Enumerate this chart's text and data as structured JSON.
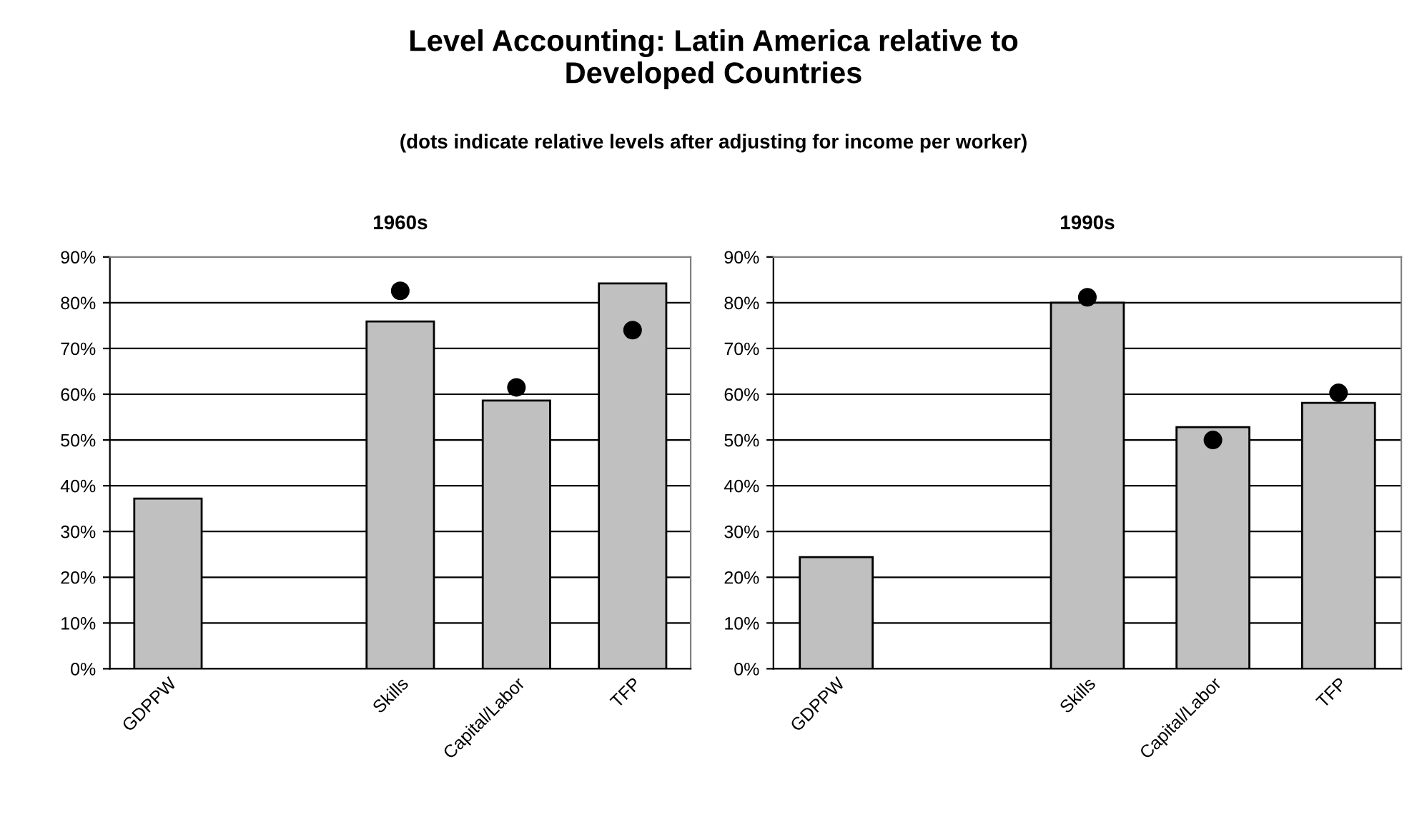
{
  "chart_data": [
    {
      "type": "bar",
      "title": "1960s",
      "annotations": [
        "Level Accounting: Latin America relative to\nDeveloped Countries",
        "(dots indicate relative levels after adjusting for income per worker)"
      ],
      "categories": [
        "GDPPW",
        null,
        "Skills",
        "Capital/Labor",
        "TFP"
      ],
      "series": [
        {
          "color": "#c0c0c0",
          "values": [
            37.2,
            null,
            75.9,
            58.6,
            84.2
          ]
        },
        {
          "type": "scatter",
          "color": "#000000",
          "marker": "circle",
          "values": [
            null,
            null,
            82.6,
            61.5,
            74.0
          ]
        }
      ],
      "ylim": [
        0,
        90
      ],
      "yticks": [
        {
          "value": 0,
          "label": "0%"
        },
        {
          "value": 10,
          "label": "10%"
        },
        {
          "value": 20,
          "label": "20%"
        },
        {
          "value": 30,
          "label": "30%"
        },
        {
          "value": 40,
          "label": "40%"
        },
        {
          "value": 50,
          "label": "50%"
        },
        {
          "value": 60,
          "label": "60%"
        },
        {
          "value": 70,
          "label": "70%"
        },
        {
          "value": 80,
          "label": "80%"
        },
        {
          "value": 90,
          "label": "90%"
        }
      ],
      "grid": "y"
    },
    {
      "type": "bar",
      "title": "1990s",
      "categories": [
        "GDPPW",
        null,
        "Skills",
        "Capital/Labor",
        "TFP"
      ],
      "series": [
        {
          "color": "#c0c0c0",
          "values": [
            24.4,
            null,
            80.0,
            52.8,
            58.1
          ]
        },
        {
          "type": "scatter",
          "color": "#000000",
          "marker": "circle",
          "values": [
            null,
            null,
            81.2,
            50.0,
            60.3
          ]
        }
      ],
      "ylim": [
        0,
        90
      ],
      "yticks": [
        {
          "value": 0,
          "label": "0%"
        },
        {
          "value": 10,
          "label": "10%"
        },
        {
          "value": 20,
          "label": "20%"
        },
        {
          "value": 30,
          "label": "30%"
        },
        {
          "value": 40,
          "label": "40%"
        },
        {
          "value": 50,
          "label": "50%"
        },
        {
          "value": 60,
          "label": "60%"
        },
        {
          "value": 70,
          "label": "70%"
        },
        {
          "value": 80,
          "label": "80%"
        },
        {
          "value": 90,
          "label": "90%"
        }
      ],
      "grid": "y"
    }
  ]
}
